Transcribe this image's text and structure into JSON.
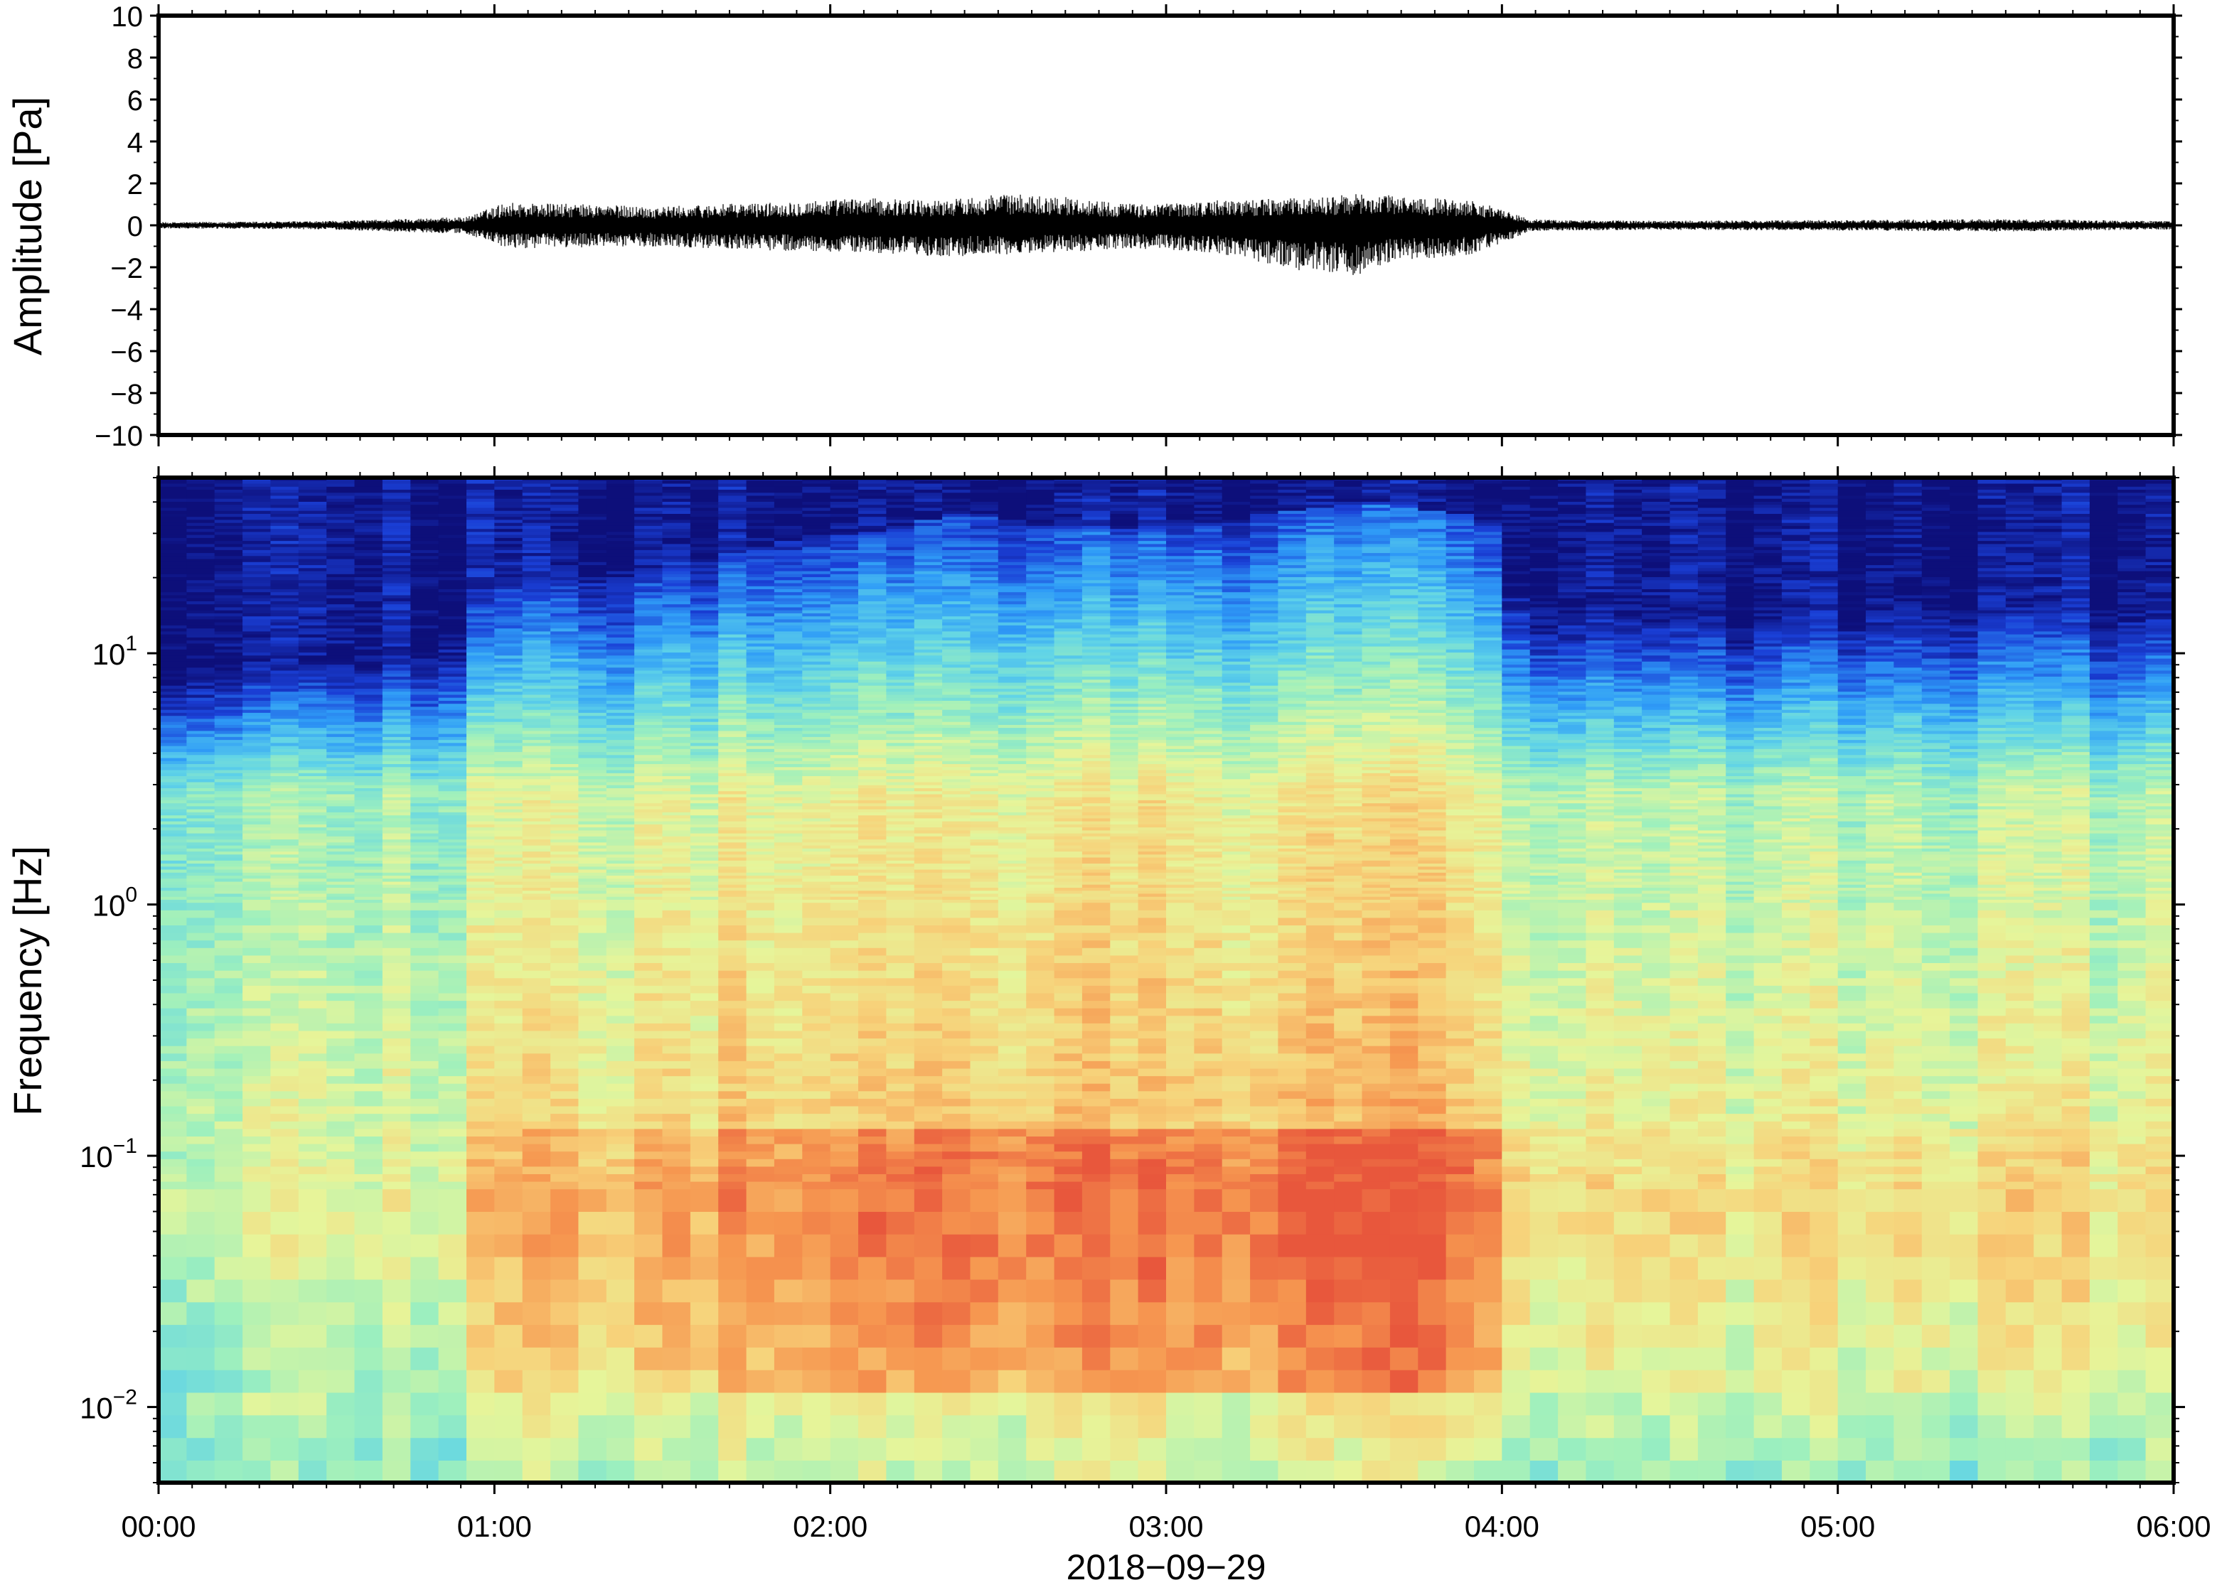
{
  "chart_data": [
    {
      "type": "line",
      "ylabel": "Amplitude [Pa]",
      "ylim": [
        -10,
        10
      ],
      "yticks": [
        "10",
        "8",
        "6",
        "4",
        "2",
        "0",
        "−2",
        "−4",
        "−6",
        "−8",
        "−10"
      ],
      "ytick_values": [
        10,
        8,
        6,
        4,
        2,
        0,
        -2,
        -4,
        -6,
        -8,
        -10
      ],
      "xlim_minutes": [
        0,
        360
      ],
      "envelope": {
        "time_minutes": [
          0,
          30,
          55,
          62,
          90,
          110,
          125,
          140,
          150,
          160,
          175,
          190,
          205,
          215,
          222,
          229,
          235,
          245,
          250,
          270,
          300,
          330,
          360
        ],
        "upper": [
          0.15,
          0.2,
          0.4,
          1.1,
          0.9,
          1.1,
          1.3,
          1.2,
          1.5,
          1.4,
          1.0,
          1.2,
          1.3,
          1.5,
          1.4,
          1.3,
          1.2,
          0.3,
          0.25,
          0.22,
          0.25,
          0.3,
          0.2
        ],
        "lower": [
          -0.15,
          -0.2,
          -0.4,
          -1.1,
          -1.0,
          -1.2,
          -1.3,
          -1.5,
          -1.4,
          -1.3,
          -1.1,
          -1.4,
          -2.2,
          -2.4,
          -1.6,
          -1.6,
          -1.4,
          -0.3,
          -0.25,
          -0.22,
          -0.25,
          -0.3,
          -0.2
        ]
      }
    },
    {
      "type": "heatmap",
      "ylabel": "Frequency [Hz]",
      "xlabel": "2018−09−29",
      "yscale": "log",
      "ylim": [
        0.005,
        50
      ],
      "yticks": [
        {
          "base": "10",
          "exp": "1",
          "value": 10
        },
        {
          "base": "10",
          "exp": "0",
          "value": 1
        },
        {
          "base": "10",
          "exp": "−1",
          "value": 0.1
        },
        {
          "base": "10",
          "exp": "−2",
          "value": 0.01
        }
      ],
      "xticks": [
        "00:00",
        "01:00",
        "02:00",
        "03:00",
        "04:00",
        "05:00",
        "06:00"
      ],
      "xtick_minutes": [
        0,
        60,
        120,
        180,
        240,
        300,
        360
      ],
      "colormap": [
        "#0d0f7a",
        "#1a3fd6",
        "#2f9cf7",
        "#5fd3e8",
        "#9ef0bd",
        "#e6f59a",
        "#f7d27a",
        "#f69750",
        "#e8573c"
      ],
      "activity": {
        "time_minutes": [
          0,
          20,
          50,
          60,
          80,
          100,
          115,
          130,
          145,
          160,
          180,
          200,
          215,
          230,
          240,
          243,
          260,
          280,
          300,
          320,
          340,
          360
        ],
        "level": [
          0.1,
          0.12,
          0.2,
          0.55,
          0.6,
          0.7,
          0.8,
          0.85,
          0.95,
          0.85,
          0.85,
          0.95,
          1.0,
          0.95,
          0.9,
          0.4,
          0.35,
          0.35,
          0.38,
          0.42,
          0.4,
          0.38
        ]
      }
    }
  ]
}
